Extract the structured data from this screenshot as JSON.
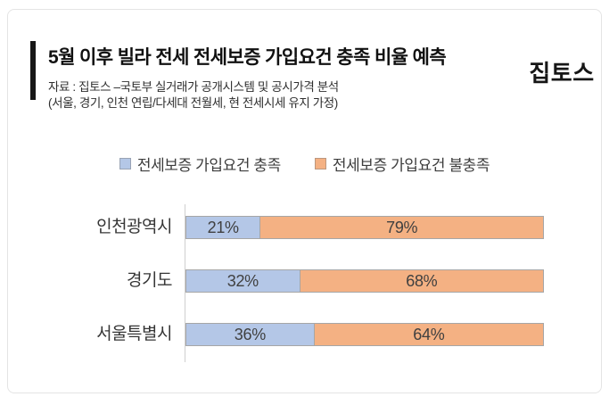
{
  "header": {
    "title": "5월 이후 빌라 전세 전세보증 가입요건 충족 비율 예측",
    "source_line": "자료 : 집토스 –국토부 실거래가 공개시스템 및 공시가격 분석",
    "assumption_line": "(서울, 경기, 인천 연립/다세대 전월세, 현 전세시세 유지 가정)",
    "logo": "집토스"
  },
  "colors": {
    "satisfied_blue": "#b4c7e7",
    "unsatisfied_orange": "#f4b183",
    "bar_border": "#a6a6a6",
    "axis_line": "#cfcfcf",
    "accent_bar": "#171717"
  },
  "chart_data": {
    "type": "bar",
    "orientation": "horizontal",
    "stacked": true,
    "title": "5월 이후 빌라 전세 전세보증 가입요건 충족 비율 예측",
    "categories": [
      "인천광역시",
      "경기도",
      "서울특별시"
    ],
    "series": [
      {
        "name": "전세보증 가입요건 충족",
        "color": "#b4c7e7",
        "values": [
          21,
          32,
          36
        ]
      },
      {
        "name": "전세보증 가입요건 불충족",
        "color": "#f4b183",
        "values": [
          79,
          68,
          64
        ]
      }
    ],
    "value_suffix": "%",
    "xlim": [
      0,
      100
    ],
    "legend_position": "top",
    "grid": false,
    "data_labels": true
  }
}
